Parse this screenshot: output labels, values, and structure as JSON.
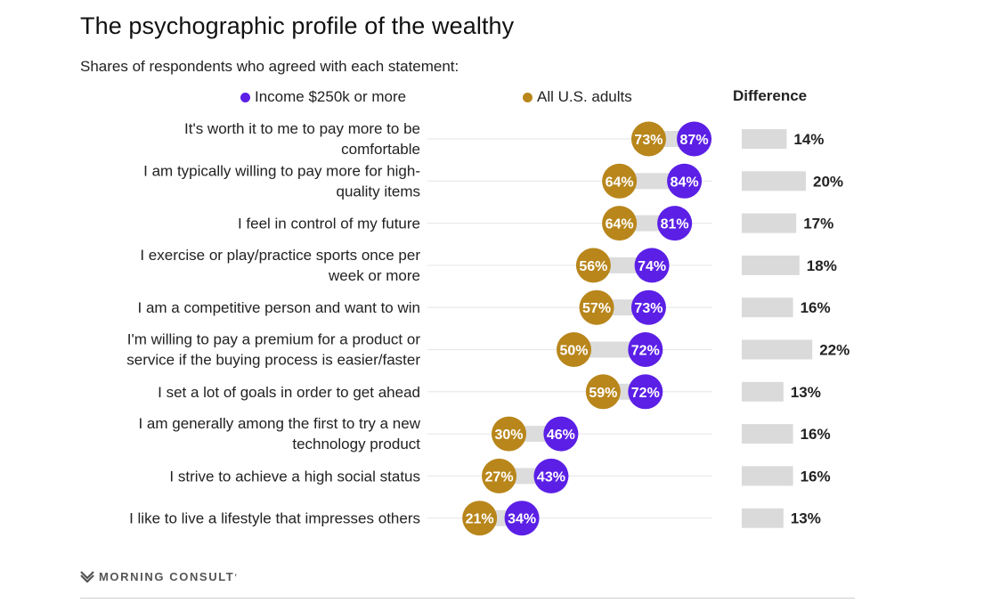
{
  "title": "The psychographic profile of the wealthy",
  "subtitle": "Shares of respondents who agreed with each statement:",
  "legend": {
    "income_label": "Income $250k or more",
    "all_label": "All U.S. adults",
    "difference_label": "Difference"
  },
  "footer": {
    "brand": "MORNING CONSULT",
    "logo_icon": "morning-consult-logo-icon"
  },
  "colors": {
    "income": "#5b1fe6",
    "all": "#b8861b",
    "connector": "#dcdcdc",
    "diffbar": "#dadada",
    "gridline": "#e6e6e6"
  },
  "chart_data": {
    "type": "dot",
    "title": "The psychographic profile of the wealthy",
    "subtitle": "Shares of respondents who agreed with each statement:",
    "categories": [
      [
        "It's worth it to me to pay more to be",
        "comfortable"
      ],
      [
        "I am typically willing to pay more for high-",
        "quality items"
      ],
      [
        "I feel in control of my future"
      ],
      [
        "I exercise or play/practice sports once per",
        "week or more"
      ],
      [
        "I am a competitive person and want to win"
      ],
      [
        "I'm willing to pay a premium for a product or",
        "service if the buying process is easier/faster"
      ],
      [
        "I set a lot of goals in order to get ahead"
      ],
      [
        "I am generally among the first to try a new",
        "technology product"
      ],
      [
        "I strive to achieve a high social status"
      ],
      [
        "I like to live a lifestyle that impresses others"
      ]
    ],
    "series": [
      {
        "name": "Income $250k or more",
        "values": [
          87,
          84,
          81,
          74,
          73,
          72,
          72,
          46,
          43,
          34
        ]
      },
      {
        "name": "All U.S. adults",
        "values": [
          73,
          64,
          64,
          56,
          57,
          50,
          59,
          30,
          27,
          21
        ]
      }
    ],
    "difference": {
      "name": "Difference",
      "values": [
        14,
        20,
        17,
        18,
        16,
        22,
        13,
        16,
        16,
        13
      ]
    },
    "unit": "%",
    "legend_position": "top"
  }
}
